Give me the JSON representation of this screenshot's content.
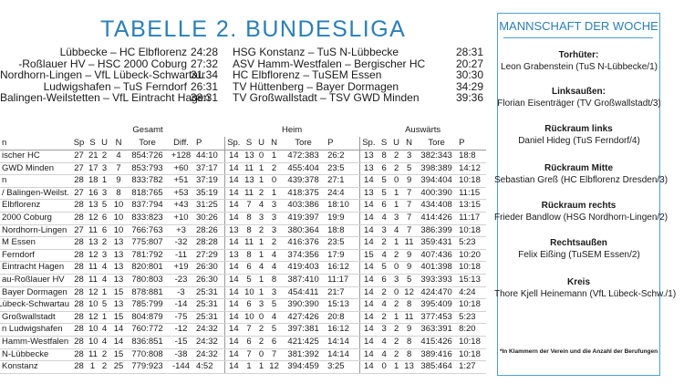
{
  "title": "TABELLE 2. BUNDESLIGA",
  "results": [
    {
      "match1": "Lübbecke – HC Elbflorenz",
      "score1": "24:28",
      "match2": "HSG Konstanz – TuS N-Lübbecke",
      "score2": "28:31"
    },
    {
      "match1": "-Roßlauer HV – HSC 2000 Coburg",
      "score1": "27:32",
      "match2": "ASV Hamm-Westfalen – Bergischer HC",
      "score2": "20:27"
    },
    {
      "match1": "Nordhorn-Lingen – VfL Lübeck-Schwartau",
      "score1": "31:34",
      "match2": "HC Elbflorenz – TuSEM Essen",
      "score2": "30:30"
    },
    {
      "match1": "Ludwigshafen – TuS Ferndorf",
      "score1": "26:31",
      "match2": "TV Hüttenberg – Bayer Dormagen",
      "score2": "34:29"
    },
    {
      "match1": "Balingen-Weilstetten – VfL Eintracht Hagen",
      "score1": "38:31",
      "match2": "TV Großwallstadt – TSV GWD Minden",
      "score2": "39:36"
    }
  ],
  "table": {
    "group_labels": {
      "gesamt": "Gesamt",
      "heim": "Heim",
      "auswaerts": "Auswärts"
    },
    "headers": [
      "n",
      "Sp",
      "S",
      "U",
      "N",
      "Tore",
      "Diff.",
      "P",
      "Sp.",
      "S",
      "U",
      "N",
      "Tore",
      "P",
      "Sp.",
      "S",
      "U",
      "N",
      "Tore",
      "P"
    ],
    "rows": [
      [
        "ischer HC",
        "27",
        "21",
        "2",
        "4",
        "854:726",
        "+128",
        "44:10",
        "14",
        "13",
        "0",
        "1",
        "472:383",
        "26:2",
        "13",
        "8",
        "2",
        "3",
        "382:343",
        "18:8"
      ],
      [
        "GWD Minden",
        "27",
        "17",
        "3",
        "7",
        "853:793",
        "+60",
        "37:17",
        "14",
        "11",
        "1",
        "2",
        "455:404",
        "23:5",
        "13",
        "6",
        "2",
        "5",
        "398:389",
        "14:12"
      ],
      [
        "n",
        "28",
        "18",
        "1",
        "9",
        "833:782",
        "+51",
        "37:19",
        "14",
        "13",
        "1",
        "0",
        "439:378",
        "27:1",
        "14",
        "5",
        "0",
        "9",
        "394:404",
        "10:18"
      ],
      [
        "/ Balingen-Weilst.",
        "27",
        "16",
        "3",
        "8",
        "818:765",
        "+53",
        "35:19",
        "14",
        "11",
        "2",
        "1",
        "418:375",
        "24:4",
        "13",
        "5",
        "1",
        "7",
        "400:390",
        "11:15"
      ],
      [
        "Elbflorenz",
        "28",
        "13",
        "5",
        "10",
        "837:794",
        "+43",
        "31:25",
        "14",
        "7",
        "4",
        "3",
        "403:386",
        "18:10",
        "14",
        "6",
        "1",
        "7",
        "434:408",
        "13:15"
      ],
      [
        "2000 Coburg",
        "28",
        "12",
        "6",
        "10",
        "833:823",
        "+10",
        "30:26",
        "14",
        "8",
        "3",
        "3",
        "419:397",
        "19:9",
        "14",
        "4",
        "3",
        "7",
        "414:426",
        "11:17"
      ],
      [
        "Nordhorn-Lingen",
        "27",
        "11",
        "6",
        "10",
        "766:763",
        "+3",
        "28:26",
        "13",
        "8",
        "2",
        "3",
        "380:364",
        "18:8",
        "14",
        "3",
        "4",
        "7",
        "386:399",
        "10:18"
      ],
      [
        "M Essen",
        "28",
        "13",
        "2",
        "13",
        "775:807",
        "-32",
        "28:28",
        "14",
        "11",
        "1",
        "2",
        "416:376",
        "23:5",
        "14",
        "2",
        "1",
        "11",
        "359:431",
        "5:23"
      ],
      [
        "Ferndorf",
        "28",
        "12",
        "3",
        "13",
        "781:792",
        "-11",
        "27:29",
        "13",
        "8",
        "1",
        "4",
        "374:356",
        "17:9",
        "15",
        "4",
        "2",
        "9",
        "407:436",
        "10:20"
      ],
      [
        "Eintracht Hagen",
        "28",
        "11",
        "4",
        "13",
        "820:801",
        "+19",
        "26:30",
        "14",
        "6",
        "4",
        "4",
        "419:403",
        "16:12",
        "14",
        "5",
        "0",
        "9",
        "401:398",
        "10:18"
      ],
      [
        "au-Roßlauer HV",
        "28",
        "11",
        "4",
        "13",
        "780:803",
        "-23",
        "26:30",
        "14",
        "5",
        "1",
        "8",
        "387:410",
        "11:17",
        "14",
        "6",
        "3",
        "5",
        "393:393",
        "15:13"
      ],
      [
        "Bayer Dormagen",
        "28",
        "12",
        "1",
        "15",
        "878:881",
        "-3",
        "25:31",
        "14",
        "10",
        "1",
        "3",
        "454:411",
        "21:7",
        "14",
        "2",
        "0",
        "12",
        "424:470",
        "4:24"
      ],
      [
        "Lübeck-Schwartau",
        "28",
        "10",
        "5",
        "13",
        "785:799",
        "-14",
        "25:31",
        "14",
        "6",
        "3",
        "5",
        "390:390",
        "15:13",
        "14",
        "4",
        "2",
        "8",
        "395:409",
        "10:18"
      ],
      [
        "Großwallstadt",
        "28",
        "12",
        "1",
        "15",
        "804:879",
        "-75",
        "25:31",
        "14",
        "10",
        "0",
        "4",
        "427:426",
        "20:8",
        "14",
        "2",
        "1",
        "11",
        "377:453",
        "5:23"
      ],
      [
        "n Ludwigshafen",
        "28",
        "10",
        "4",
        "14",
        "760:772",
        "-12",
        "24:32",
        "14",
        "7",
        "2",
        "5",
        "397:381",
        "16:12",
        "14",
        "3",
        "2",
        "9",
        "363:391",
        "8:20"
      ],
      [
        "Hamm-Westfalen",
        "28",
        "10",
        "4",
        "14",
        "836:851",
        "-15",
        "24:32",
        "14",
        "6",
        "2",
        "6",
        "421:425",
        "14:14",
        "14",
        "4",
        "2",
        "8",
        "415:426",
        "10:18"
      ],
      [
        "N-Lübbecke",
        "28",
        "11",
        "2",
        "15",
        "770:808",
        "-38",
        "24:32",
        "14",
        "7",
        "0",
        "7",
        "381:392",
        "14:14",
        "14",
        "4",
        "2",
        "8",
        "389:416",
        "10:18"
      ],
      [
        "Konstanz",
        "28",
        "1",
        "2",
        "25",
        "779:923",
        "-144",
        "4:52",
        "14",
        "1",
        "1",
        "12",
        "394:459",
        "3:25",
        "14",
        "0",
        "1",
        "13",
        "385:464",
        "1:27"
      ]
    ]
  },
  "team_of_week": {
    "title": "MANNSCHAFT DER WOCHE",
    "positions": [
      {
        "position": "Torhüter:",
        "player": "Leon Grabenstein (TuS N-Lübbecke/1)"
      },
      {
        "position": "Linksaußen:",
        "player": "Florian Eisenträger (TV Großwallstadt/3)"
      },
      {
        "position": "Rückraum links",
        "player": "Daniel Hideg (TuS Ferndorf/4)"
      },
      {
        "position": "Rückraum Mitte",
        "player": "Sebastian Greß (HC Elbflorenz Dresden/3)"
      },
      {
        "position": "Rückraum rechts",
        "player": "Frieder Bandlow (HSG Nordhorn-Lingen/2)"
      },
      {
        "position": "Rechtsaußen",
        "player": "Felix Eißing (TuSEM Essen/2)"
      },
      {
        "position": "Kreis",
        "player": "Thore Kjell Heinemann (VfL Lübeck-Schw./1)"
      }
    ],
    "note": "*In Klammern der Verein und die Anzahl der Berufungen"
  }
}
